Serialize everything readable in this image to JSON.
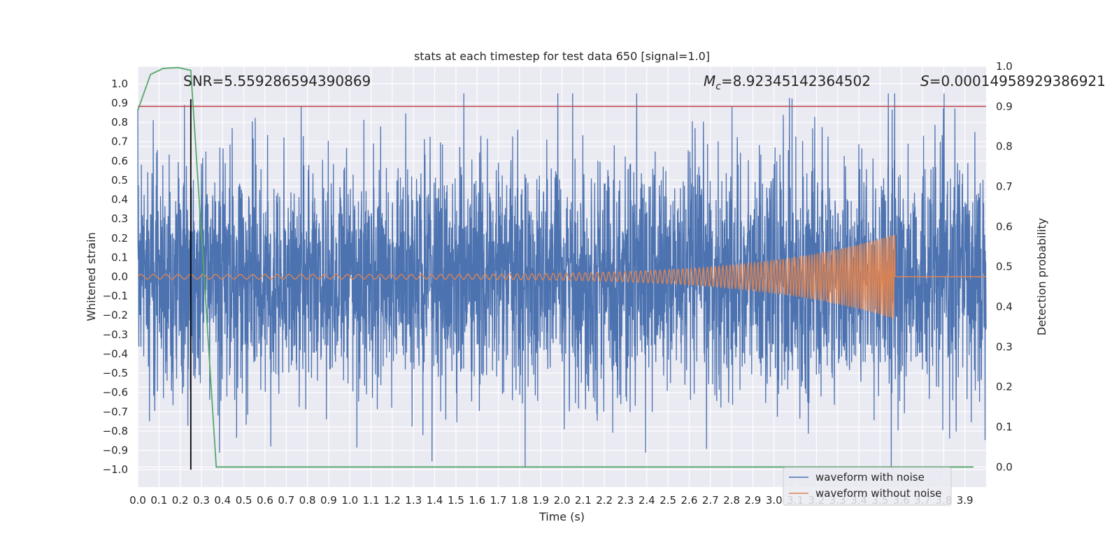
{
  "chart_data": {
    "type": "line",
    "title": "stats at each timestep for test data 650 [signal=1.0]",
    "xlabel": "Time (s)",
    "ylabel": "Whitened strain",
    "y2label": "Detection probability",
    "xlim": [
      0.0,
      4.0
    ],
    "ylim": [
      -1.09,
      1.09
    ],
    "y2lim": [
      -0.05,
      1.0
    ],
    "x_ticks": [
      "0.0",
      "0.1",
      "0.2",
      "0.3",
      "0.4",
      "0.5",
      "0.6",
      "0.7",
      "0.8",
      "0.9",
      "1.0",
      "1.1",
      "1.2",
      "1.3",
      "1.4",
      "1.5",
      "1.6",
      "1.7",
      "1.8",
      "1.9",
      "2.0",
      "2.1",
      "2.2",
      "2.3",
      "2.4",
      "2.5",
      "2.6",
      "2.7",
      "2.8",
      "2.9",
      "3.0",
      "3.1",
      "3.2",
      "3.3",
      "3.4",
      "3.5",
      "3.6",
      "3.7",
      "3.8",
      "3.9"
    ],
    "y_ticks": [
      "1.0",
      "0.9",
      "0.8",
      "0.7",
      "0.6",
      "0.5",
      "0.4",
      "0.3",
      "0.2",
      "0.1",
      "0.0",
      "−0.1",
      "−0.2",
      "−0.3",
      "−0.4",
      "−0.5",
      "−0.6",
      "−0.7",
      "−0.8",
      "−0.9",
      "−1.0"
    ],
    "y2_ticks": [
      "1.0",
      "0.9",
      "0.8",
      "0.7",
      "0.6",
      "0.5",
      "0.4",
      "0.3",
      "0.2",
      "0.1",
      "0.0"
    ],
    "grid": true,
    "legend_position": "lower-right",
    "annotations": {
      "snr": "SNR=5.559286594390869",
      "mc_symbol": "M",
      "mc_subscript": "c",
      "mc_value": "=8.92345142364502",
      "s_symbol": "S",
      "s_value": "=0.00014958929386921"
    },
    "series": [
      {
        "name": "waveform with noise",
        "color": "#4c72b0",
        "axis": "left",
        "description_values": "dense noise between approx -1.0 and 0.95, peaks ~0.9 at t=0.55 and t=3.3, minimum ~-1.0 at t=2.75 and t=3.47"
      },
      {
        "name": "waveform without noise",
        "color": "#dd8452",
        "axis": "left",
        "chirp": {
          "start_time": 0.0,
          "merger_time": 3.57,
          "start_amplitude": 0.012,
          "peak_amplitude": 0.22,
          "start_freq": 17,
          "end_freq": 60
        }
      },
      {
        "name": "detection probability",
        "color": "#55a868",
        "axis": "right",
        "x": [
          0.0,
          0.06,
          0.12,
          0.19,
          0.25,
          0.31,
          0.37,
          3.94
        ],
        "y": [
          0.89,
          0.98,
          0.995,
          0.997,
          0.99,
          0.5,
          0.0,
          0.0
        ]
      },
      {
        "name": "threshold",
        "color": "#c44e52",
        "axis": "right",
        "x": [
          0.0,
          4.0
        ],
        "y": [
          0.9,
          0.9
        ]
      },
      {
        "name": "marker",
        "color": "#000000",
        "axis": "left",
        "x": [
          0.25,
          0.25
        ],
        "y": [
          -1.0,
          0.92
        ]
      }
    ],
    "legend": [
      "waveform with noise",
      "waveform without noise"
    ]
  }
}
